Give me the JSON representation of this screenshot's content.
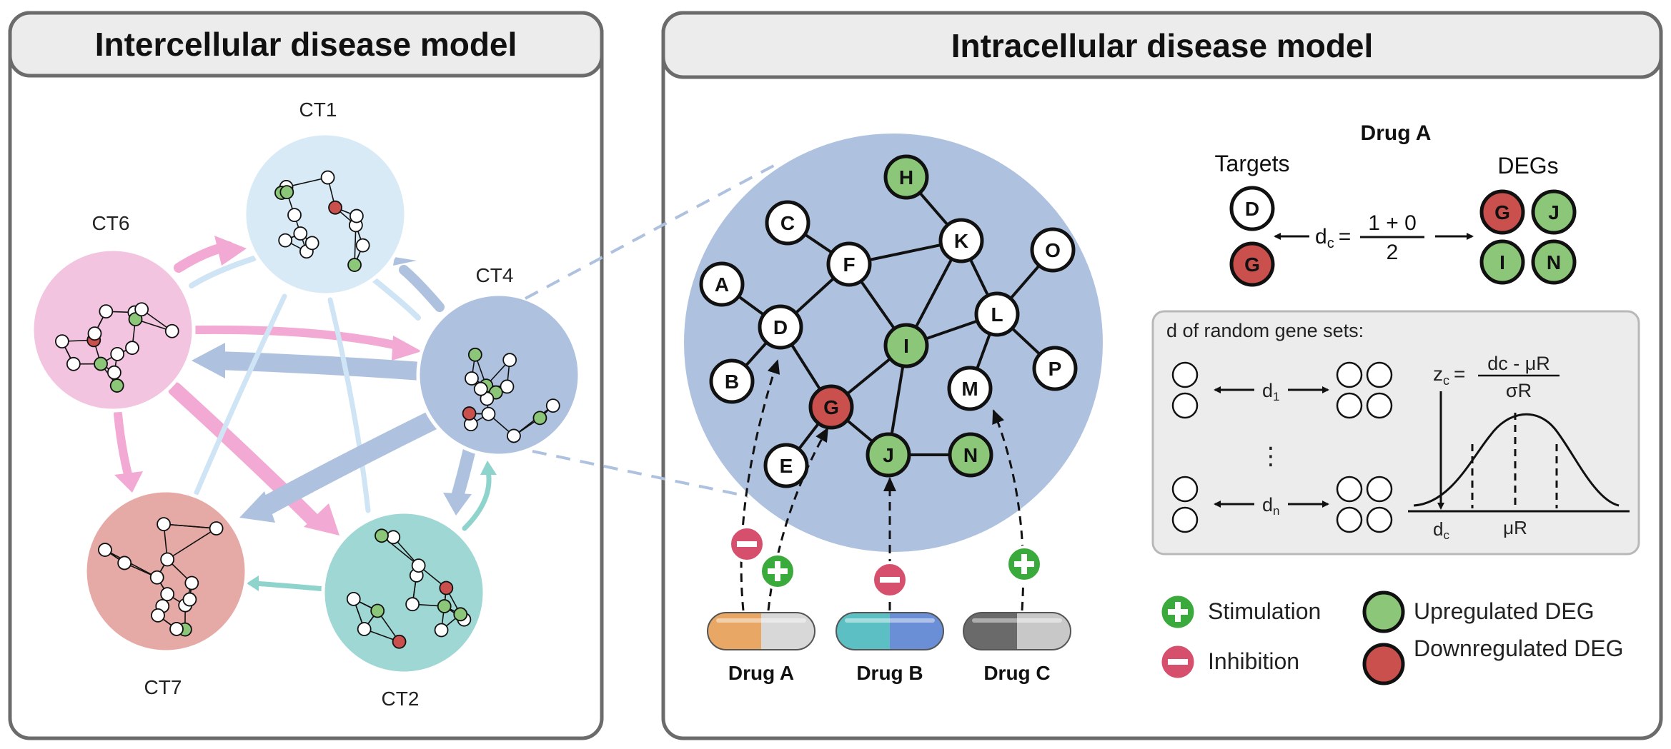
{
  "left_panel": {
    "title": "Intercellular disease model",
    "cell_types": [
      {
        "id": "CT1",
        "label": "CT1",
        "color": "#d9eaf7"
      },
      {
        "id": "CT6",
        "label": "CT6",
        "color": "#f2c4e0"
      },
      {
        "id": "CT4",
        "label": "CT4",
        "color": "#aec2e0"
      },
      {
        "id": "CT7",
        "label": "CT7",
        "color": "#e6aaa6"
      },
      {
        "id": "CT2",
        "label": "CT2",
        "color": "#9fd7d4"
      }
    ]
  },
  "right_panel": {
    "title": "Intracellular disease model",
    "network": {
      "nodes": [
        {
          "id": "A",
          "label": "A",
          "status": "none"
        },
        {
          "id": "B",
          "label": "B",
          "status": "none"
        },
        {
          "id": "C",
          "label": "C",
          "status": "none"
        },
        {
          "id": "D",
          "label": "D",
          "status": "none"
        },
        {
          "id": "E",
          "label": "E",
          "status": "none"
        },
        {
          "id": "F",
          "label": "F",
          "status": "none"
        },
        {
          "id": "G",
          "label": "G",
          "status": "down"
        },
        {
          "id": "H",
          "label": "H",
          "status": "up"
        },
        {
          "id": "I",
          "label": "I",
          "status": "up"
        },
        {
          "id": "J",
          "label": "J",
          "status": "up"
        },
        {
          "id": "K",
          "label": "K",
          "status": "none"
        },
        {
          "id": "L",
          "label": "L",
          "status": "none"
        },
        {
          "id": "M",
          "label": "M",
          "status": "none"
        },
        {
          "id": "N",
          "label": "N",
          "status": "up"
        },
        {
          "id": "O",
          "label": "O",
          "status": "none"
        },
        {
          "id": "P",
          "label": "P",
          "status": "none"
        }
      ]
    },
    "drugs": [
      {
        "label": "Drug A",
        "colors": [
          "#e8a765",
          "#d8d8d8"
        ]
      },
      {
        "label": "Drug B",
        "colors": [
          "#5bbfc3",
          "#6a8fd6"
        ]
      },
      {
        "label": "Drug C",
        "colors": [
          "#6a6a6a",
          "#c8c8c8"
        ]
      }
    ],
    "drug_a_box": {
      "title": "Drug A",
      "targets_label": "Targets",
      "degs_label": "DEGs",
      "targets": [
        "D",
        "G"
      ],
      "degs": [
        "G",
        "J",
        "I",
        "N"
      ],
      "formula_lhs": "d",
      "formula_sub": "c",
      "formula_eq": "=",
      "formula_numerator": "1 + 0",
      "formula_denominator": "2"
    },
    "random_box": {
      "title": "d of random gene sets:",
      "d1": "d",
      "d1_sub": "1",
      "dn": "d",
      "dn_sub": "n",
      "vdots": "⋮",
      "z_label": "z",
      "z_sub": "c",
      "z_eq": "=",
      "z_numerator": "dc - μR",
      "z_denominator": "σR",
      "axis_dc": "d",
      "axis_dc_sub": "c",
      "axis_mu": "μR"
    },
    "legend": {
      "stimulation": "Stimulation",
      "inhibition": "Inhibition",
      "upregulated": "Upregulated DEG",
      "downregulated": "Downregulated DEG",
      "colors": {
        "up": "#8cc678",
        "down": "#c9504d",
        "stim": "#3aaa3c",
        "inhib": "#d6506e"
      }
    }
  }
}
